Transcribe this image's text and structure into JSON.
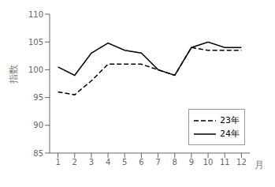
{
  "chart_data": {
    "type": "line",
    "xlabel": "月",
    "ylabel": "指数",
    "x": [
      1,
      2,
      3,
      4,
      5,
      6,
      7,
      8,
      9,
      10,
      11,
      12
    ],
    "series": [
      {
        "name": "23年",
        "color": "#000000",
        "line_style": "dashed",
        "values": [
          96.0,
          95.5,
          98.0,
          101.0,
          101.0,
          101.0,
          100.0,
          99.0,
          104.0,
          103.5,
          103.5,
          103.5
        ]
      },
      {
        "name": "24年",
        "color": "#000000",
        "line_style": "solid",
        "values": [
          100.5,
          99.0,
          103.0,
          104.8,
          103.5,
          103.0,
          100.0,
          99.0,
          104.0,
          105.0,
          104.0,
          104.0
        ]
      }
    ],
    "xlim": [
      0.5,
      12.5
    ],
    "xticks": [
      1,
      2,
      3,
      4,
      5,
      6,
      7,
      8,
      9,
      10,
      11,
      12
    ],
    "ylim": [
      85,
      110
    ],
    "yticks": [
      85,
      90,
      95,
      100,
      105,
      110
    ],
    "grid": false,
    "legend": "lower right"
  }
}
